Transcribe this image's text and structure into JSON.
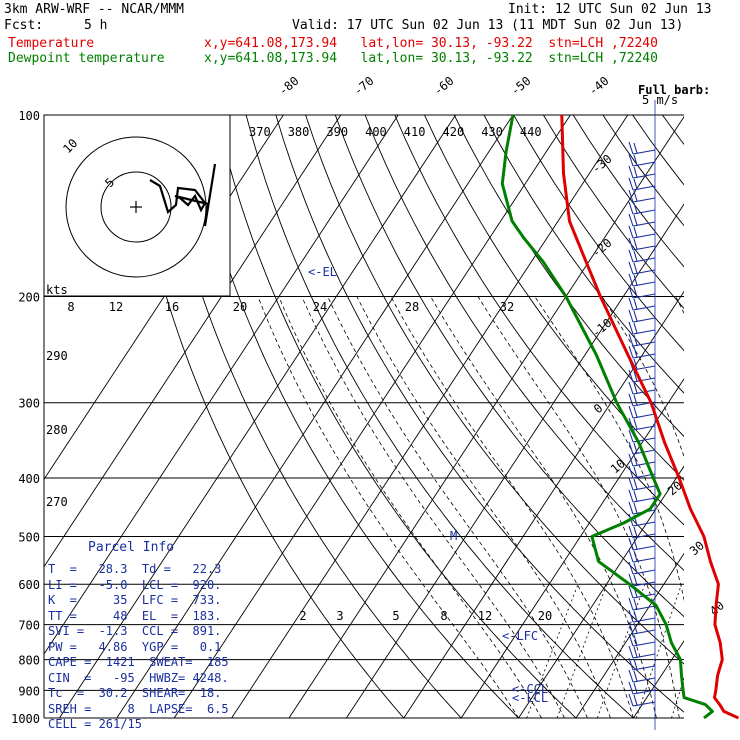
{
  "header": {
    "model": "3km ARW-WRF -- NCAR/MMM",
    "init": "Init: 12 UTC Sun 02 Jun 13",
    "fcst_label": "Fcst:",
    "fcst_value": "5 h",
    "valid": "Valid: 17 UTC Sun 02 Jun 13 (11 MDT Sun 02 Jun 13)",
    "temp_label": "Temperature",
    "temp_info": "x,y=641.08,173.94   lat,lon= 30.13, -93.22  stn=LCH ,72240",
    "dew_label": "Dewpoint temperature",
    "dew_info": "x,y=641.08,173.94   lat,lon= 30.13, -93.22  stn=LCH ,72240"
  },
  "parcel_info": {
    "title": "Parcel Info",
    "lines": [
      "T  =   28.3  Td =   22.3",
      "LI =   -5.0  LCL =  920.",
      "K  =     35  LFC =  733.",
      "TT =     48  EL  =  183.",
      "SVI =  -1.3  CCL =  891.",
      "PW =   4.86  YGP =   0.1",
      "CAPE =  1421  SWEAT=  185",
      "CIN  =   -95  HWBZ= 4248.",
      "Tc  =  30.2  SHEAR=  18.",
      "SREH =     8  LAPSE=  6.5",
      "CELL = 261/15"
    ]
  },
  "hodograph": {
    "units_label": "kts",
    "ring_labels": [
      "5",
      "10"
    ]
  },
  "wind_legend": {
    "line1": "Full barb:",
    "line2": "5 m/s"
  },
  "colors": {
    "temperature": "#e00000",
    "dewpoint": "#008000",
    "annot": "#1a2fa0"
  },
  "chart_data": {
    "type": "line",
    "title": "",
    "ylabel": "",
    "pressure_levels": [
      100,
      200,
      300,
      400,
      500,
      600,
      700,
      800,
      900,
      1000
    ],
    "isotherm_labels": [
      "-80",
      "-70",
      "-60",
      "-50",
      "-40",
      "-30",
      "-20",
      "-10",
      "0",
      "10",
      "20",
      "30",
      "40"
    ],
    "theta_labels": [
      "370",
      "380",
      "390",
      "400",
      "410",
      "420",
      "430",
      "440"
    ],
    "mixing_ratio_labels": [
      "2",
      "3",
      "5",
      "8",
      "12",
      "20"
    ],
    "theta_e_labels_top": [
      "8",
      "12",
      "16",
      "20",
      "24",
      "28",
      "32"
    ],
    "side_labels": [
      "290",
      "280",
      "270"
    ],
    "annotations": [
      "<-EL",
      "<-LFC",
      "<-CCL",
      "<-LCL",
      "M"
    ],
    "series": [
      {
        "name": "Temperature",
        "points": [
          [
            1000,
            28.3
          ],
          [
            975,
            25
          ],
          [
            950,
            23.5
          ],
          [
            925,
            21.8
          ],
          [
            900,
            21.2
          ],
          [
            850,
            19.8
          ],
          [
            800,
            18.8
          ],
          [
            750,
            16.5
          ],
          [
            700,
            13.5
          ],
          [
            650,
            11.5
          ],
          [
            600,
            9.5
          ],
          [
            550,
            5.5
          ],
          [
            500,
            1.5
          ],
          [
            450,
            -4
          ],
          [
            400,
            -9.5
          ],
          [
            350,
            -16
          ],
          [
            300,
            -23
          ],
          [
            250,
            -32.5
          ],
          [
            200,
            -44
          ],
          [
            175,
            -50.5
          ],
          [
            150,
            -58
          ],
          [
            125,
            -64.5
          ],
          [
            100,
            -71.5
          ]
        ]
      },
      {
        "name": "Dewpoint temperature",
        "points": [
          [
            1000,
            22.3
          ],
          [
            975,
            23
          ],
          [
            950,
            21
          ],
          [
            925,
            16.5
          ],
          [
            900,
            15.5
          ],
          [
            850,
            13.5
          ],
          [
            800,
            11.5
          ],
          [
            750,
            8
          ],
          [
            700,
            5
          ],
          [
            650,
            1
          ],
          [
            600,
            -6
          ],
          [
            550,
            -14
          ],
          [
            500,
            -18
          ],
          [
            475,
            -14
          ],
          [
            450,
            -11
          ],
          [
            425,
            -11
          ],
          [
            400,
            -14
          ],
          [
            350,
            -20.5
          ],
          [
            300,
            -29
          ],
          [
            250,
            -38
          ],
          [
            200,
            -50
          ],
          [
            175,
            -58
          ],
          [
            160,
            -64
          ],
          [
            150,
            -68
          ],
          [
            130,
            -74
          ],
          [
            115,
            -77
          ],
          [
            100,
            -80
          ]
        ]
      }
    ],
    "ylim": [
      1000,
      100
    ]
  }
}
